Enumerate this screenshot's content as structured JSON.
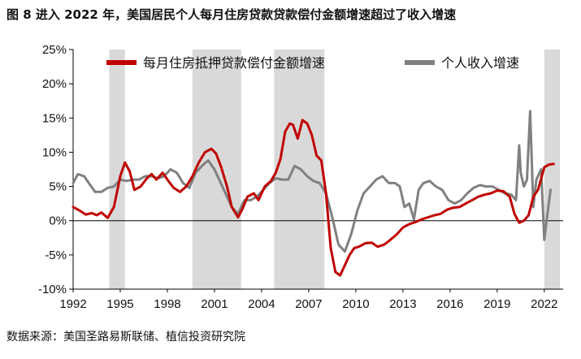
{
  "title": "图 8 进入 2022 年，美国居民个人每月住房贷款贷款偿付金额增速超过了收入增速",
  "source": "数据来源：美国圣路易斯联储、植信投资研究院",
  "colors": {
    "mortgage": "#c00000",
    "income": "#808080",
    "shade": "#d9d9d9"
  },
  "chart_data": {
    "type": "line",
    "title": "",
    "xlabel": "",
    "ylabel": "",
    "xlim": [
      1992,
      2023.2
    ],
    "ylim": [
      -10,
      25
    ],
    "y_ticks": [
      -10,
      -5,
      0,
      5,
      10,
      15,
      20,
      25
    ],
    "y_tick_labels": [
      "-10%",
      "-5%",
      "0%",
      "5%",
      "10%",
      "15%",
      "20%",
      "25%"
    ],
    "x_ticks": [
      1992,
      1995,
      1998,
      2001,
      2004,
      2007,
      2010,
      2013,
      2016,
      2019,
      2022
    ],
    "x_tick_labels": [
      "1992",
      "1995",
      "1998",
      "2001",
      "2004",
      "2007",
      "2010",
      "2013",
      "2016",
      "2019",
      "2022"
    ],
    "legend_position": "top",
    "shaded_periods": [
      [
        1994.3,
        1995.3
      ],
      [
        1999.6,
        2002.7
      ],
      [
        2004.8,
        2008.0
      ],
      [
        2022.0,
        2023.0
      ]
    ],
    "series": [
      {
        "name": "每月住房抵押贷款偿付金额增速",
        "x": [
          1992,
          1992.4,
          1992.8,
          1993.2,
          1993.5,
          1993.8,
          1994.2,
          1994.6,
          1995.0,
          1995.3,
          1995.6,
          1995.9,
          1996.3,
          1996.7,
          1997.0,
          1997.3,
          1997.7,
          1998.0,
          1998.4,
          1998.8,
          1999.2,
          1999.6,
          2000.0,
          2000.4,
          2000.8,
          2001.1,
          2001.4,
          2001.8,
          2002.1,
          2002.5,
          2002.8,
          2003.1,
          2003.5,
          2003.8,
          2004.2,
          2004.6,
          2004.9,
          2005.2,
          2005.5,
          2005.8,
          2006.0,
          2006.3,
          2006.6,
          2006.9,
          2007.2,
          2007.5,
          2007.8,
          2008.1,
          2008.4,
          2008.7,
          2009.0,
          2009.3,
          2009.6,
          2009.9,
          2010.2,
          2010.6,
          2011.0,
          2011.4,
          2011.8,
          2012.2,
          2012.6,
          2013.0,
          2013.4,
          2013.8,
          2014.2,
          2014.6,
          2015.0,
          2015.4,
          2015.8,
          2016.2,
          2016.6,
          2017.0,
          2017.4,
          2017.8,
          2018.2,
          2018.6,
          2019.0,
          2019.4,
          2019.8,
          2020.1,
          2020.4,
          2020.7,
          2021.0,
          2021.3,
          2021.6,
          2022.0,
          2022.3,
          2022.6
        ],
        "y": [
          2.0,
          1.5,
          0.9,
          1.1,
          0.8,
          1.2,
          0.4,
          2.0,
          6.5,
          8.5,
          7.2,
          4.5,
          5.0,
          6.2,
          6.8,
          6.0,
          7.0,
          6.0,
          4.8,
          4.2,
          5.0,
          6.5,
          8.5,
          10.0,
          10.5,
          9.8,
          8.0,
          5.0,
          2.0,
          0.5,
          1.8,
          3.5,
          4.0,
          3.0,
          5.0,
          5.8,
          7.0,
          9.0,
          13.0,
          14.2,
          14.0,
          12.0,
          14.7,
          14.2,
          12.5,
          9.5,
          8.8,
          4.0,
          -4.0,
          -7.5,
          -8.0,
          -6.5,
          -5.0,
          -4.0,
          -3.8,
          -3.3,
          -3.2,
          -3.8,
          -3.5,
          -2.8,
          -2.0,
          -1.0,
          -0.5,
          -0.2,
          0.2,
          0.5,
          0.8,
          1.0,
          1.6,
          1.9,
          2.0,
          2.5,
          3.0,
          3.5,
          3.8,
          4.0,
          4.4,
          4.3,
          3.5,
          1.0,
          -0.3,
          0.0,
          0.8,
          3.5,
          4.5,
          7.8,
          8.2,
          8.3
        ]
      },
      {
        "name": "个人收入增速",
        "x": [
          1992,
          1992.3,
          1992.7,
          1993.0,
          1993.4,
          1993.8,
          1994.2,
          1994.6,
          1995.0,
          1995.4,
          1995.8,
          1996.2,
          1996.6,
          1997.0,
          1997.4,
          1997.8,
          1998.2,
          1998.6,
          1999.0,
          1999.4,
          1999.8,
          2000.2,
          2000.6,
          2001.0,
          2001.4,
          2001.8,
          2002.1,
          2002.5,
          2002.9,
          2003.3,
          2003.7,
          2004.1,
          2004.5,
          2004.9,
          2005.3,
          2005.7,
          2006.1,
          2006.5,
          2006.9,
          2007.3,
          2007.7,
          2008.1,
          2008.5,
          2008.9,
          2009.3,
          2009.7,
          2010.1,
          2010.5,
          2010.9,
          2011.3,
          2011.7,
          2012.1,
          2012.5,
          2012.8,
          2013.1,
          2013.4,
          2013.7,
          2014.0,
          2014.3,
          2014.7,
          2015.1,
          2015.5,
          2015.9,
          2016.3,
          2016.7,
          2017.1,
          2017.5,
          2017.9,
          2018.3,
          2018.7,
          2019.1,
          2019.5,
          2019.9,
          2020.2,
          2020.4,
          2020.5,
          2020.7,
          2020.9,
          2021.1,
          2021.3,
          2021.5,
          2021.8,
          2022.0,
          2022.2,
          2022.4
        ],
        "y": [
          5.5,
          6.8,
          6.5,
          5.5,
          4.2,
          4.2,
          4.8,
          5.0,
          6.0,
          5.8,
          6.0,
          6.0,
          6.5,
          6.5,
          6.2,
          6.5,
          7.5,
          7.0,
          5.5,
          4.8,
          7.0,
          8.0,
          8.8,
          7.5,
          5.5,
          3.5,
          2.0,
          1.0,
          3.0,
          3.0,
          3.5,
          4.5,
          5.5,
          6.2,
          6.0,
          6.0,
          8.0,
          7.5,
          6.5,
          5.8,
          5.5,
          4.0,
          0.5,
          -3.5,
          -4.5,
          -2.0,
          1.5,
          4.0,
          5.0,
          6.0,
          6.5,
          5.5,
          5.5,
          5.0,
          2.0,
          2.5,
          0.2,
          4.5,
          5.5,
          5.8,
          5.0,
          4.5,
          3.0,
          2.5,
          3.0,
          4.0,
          4.8,
          5.2,
          5.0,
          5.0,
          4.5,
          4.0,
          3.8,
          3.0,
          11.0,
          7.0,
          5.0,
          6.0,
          16.0,
          2.0,
          6.0,
          7.5,
          -2.8,
          1.0,
          4.5
        ]
      }
    ]
  }
}
